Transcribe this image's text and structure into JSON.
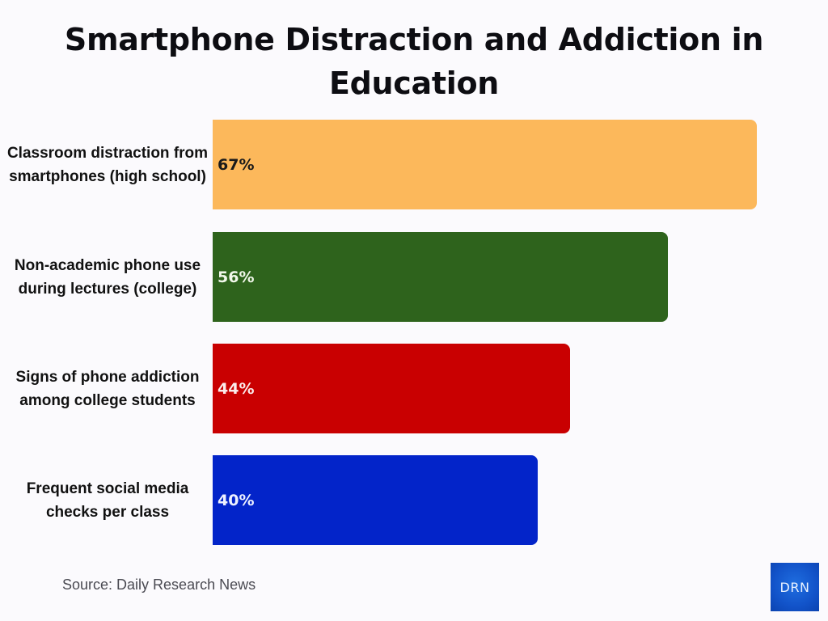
{
  "title": {
    "line1": "Smartphone Distraction and Addiction in",
    "line2": "Education"
  },
  "bars": [
    {
      "label": "Classroom distraction from smartphones (high school)",
      "value_label": "67%",
      "value": 67,
      "color": "#fcb85b",
      "text_color": "#1a1a1a"
    },
    {
      "label": "Non-academic phone use during lectures (college)",
      "value_label": "56%",
      "value": 56,
      "color": "#2e631c",
      "text_color": "#f1f7ea"
    },
    {
      "label": "Signs of phone addiction among college students",
      "value_label": "44%",
      "value": 44,
      "color": "#c90001",
      "text_color": "#fbecec"
    },
    {
      "label": "Frequent social media checks per class",
      "value_label": "40%",
      "value": 40,
      "color": "#0324c9",
      "text_color": "#eef1ff"
    }
  ],
  "footer": {
    "source": "Source: Daily Research News",
    "logo_text": "DRN"
  },
  "chart_data": {
    "type": "bar",
    "orientation": "horizontal",
    "title": "Smartphone Distraction and Addiction in Education",
    "categories": [
      "Classroom distraction from smartphones (high school)",
      "Non-academic phone use during lectures (college)",
      "Signs of phone addiction among college students",
      "Frequent social media checks per class"
    ],
    "values": [
      67,
      56,
      44,
      40
    ],
    "unit": "%",
    "colors": [
      "#fcb85b",
      "#2e631c",
      "#c90001",
      "#0324c9"
    ],
    "xlabel": "",
    "ylabel": "",
    "grid": false,
    "legend": null,
    "data_labels": [
      "67%",
      "56%",
      "44%",
      "40%"
    ],
    "source": "Source: Daily Research News"
  }
}
